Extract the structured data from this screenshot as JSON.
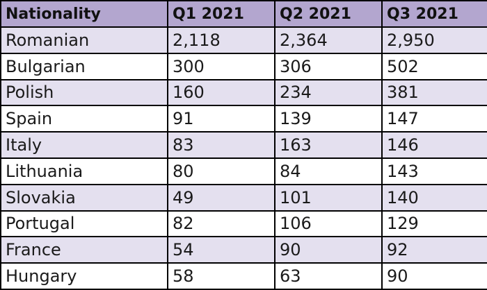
{
  "chart_data": {
    "type": "table",
    "columns": [
      "Nationality",
      "Q1 2021",
      "Q2 2021",
      "Q3 2021"
    ],
    "rows": [
      [
        "Romanian",
        "2,118",
        "2,364",
        "2,950"
      ],
      [
        "Bulgarian",
        "300",
        "306",
        "502"
      ],
      [
        "Polish",
        "160",
        "234",
        "381"
      ],
      [
        "Spain",
        "91",
        "139",
        "147"
      ],
      [
        "Italy",
        "83",
        "163",
        "146"
      ],
      [
        "Lithuania",
        "80",
        "84",
        "143"
      ],
      [
        "Slovakia",
        "49",
        "101",
        "140"
      ],
      [
        "Portugal",
        "82",
        "106",
        "129"
      ],
      [
        "France",
        "54",
        "90",
        "92"
      ],
      [
        "Hungary",
        "58",
        "63",
        "90"
      ]
    ]
  },
  "colors": {
    "header_background": "#b3a6cf",
    "striped_row_background": "#e4e0ef",
    "plain_row_background": "#ffffff",
    "border": "#000000"
  }
}
